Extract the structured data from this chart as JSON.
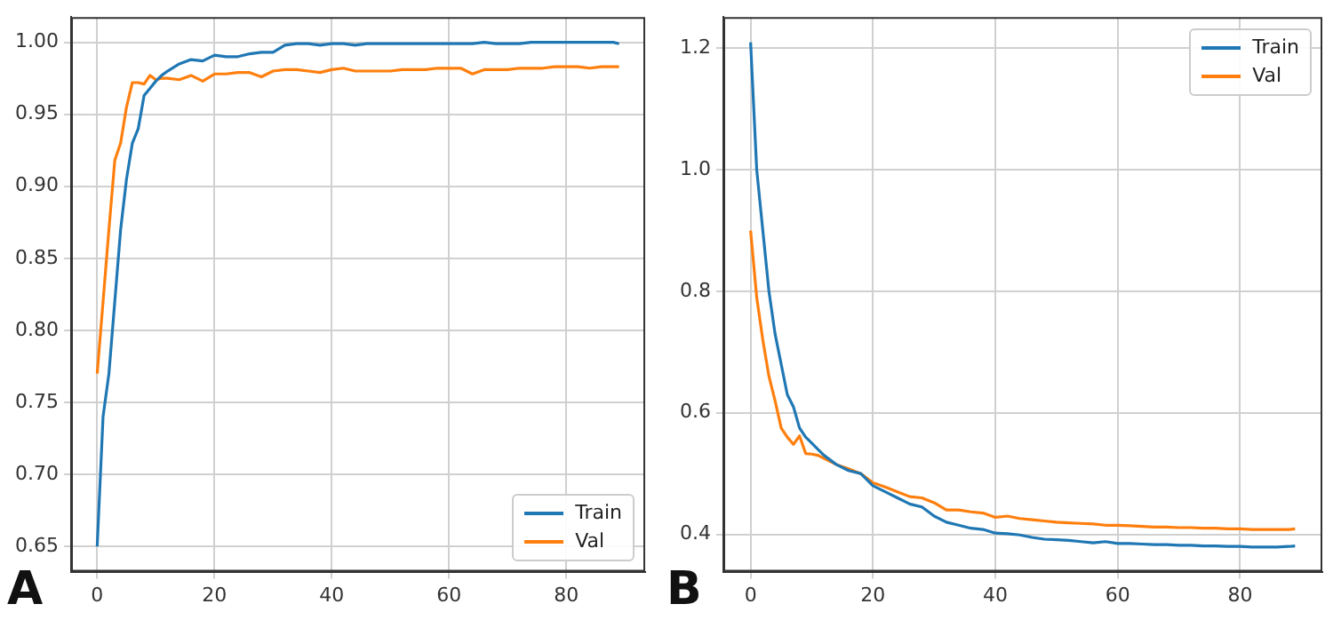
{
  "chart_data": [
    {
      "type": "line",
      "annotations": [
        "A"
      ],
      "legend": "bottom right",
      "grid": true,
      "x": [
        0,
        1,
        2,
        3,
        4,
        5,
        6,
        7,
        8,
        9,
        10,
        11,
        12,
        14,
        16,
        18,
        20,
        22,
        24,
        26,
        28,
        30,
        32,
        34,
        36,
        38,
        40,
        42,
        44,
        46,
        48,
        50,
        52,
        54,
        56,
        58,
        60,
        62,
        64,
        66,
        68,
        70,
        72,
        74,
        76,
        78,
        80,
        82,
        84,
        86,
        88,
        89
      ],
      "xlim": [
        -4.45,
        93.45
      ],
      "xticks": [
        0,
        20,
        40,
        60,
        80
      ],
      "ylim": [
        0.6325,
        1.0175
      ],
      "yticks": [
        0.65,
        {
          "value": 0.7,
          "label": "0.70"
        },
        0.75,
        {
          "value": 0.8,
          "label": "0.80"
        },
        0.85,
        {
          "value": 0.9,
          "label": "0.90"
        },
        0.95,
        {
          "value": 1,
          "label": "1.00"
        }
      ],
      "series": [
        {
          "name": "Train",
          "color": "#1f77b4",
          "values": [
            0.65,
            0.74,
            0.77,
            0.82,
            0.87,
            0.905,
            0.93,
            0.94,
            0.963,
            0.968,
            0.973,
            0.977,
            0.98,
            0.985,
            0.988,
            0.987,
            0.991,
            0.99,
            0.99,
            0.992,
            0.993,
            0.993,
            0.998,
            0.999,
            0.999,
            0.998,
            0.999,
            0.999,
            0.998,
            0.999,
            0.999,
            0.999,
            0.999,
            0.999,
            0.999,
            0.999,
            0.999,
            0.999,
            0.999,
            1.0,
            0.999,
            0.999,
            0.999,
            1.0,
            1.0,
            1.0,
            1.0,
            1.0,
            1.0,
            1.0,
            1.0,
            0.999
          ]
        },
        {
          "name": "Val",
          "color": "#ff7f0e",
          "values": [
            0.77,
            0.82,
            0.87,
            0.918,
            0.93,
            0.955,
            0.972,
            0.972,
            0.971,
            0.977,
            0.974,
            0.975,
            0.975,
            0.974,
            0.977,
            0.973,
            0.978,
            0.978,
            0.979,
            0.979,
            0.976,
            0.98,
            0.981,
            0.981,
            0.98,
            0.979,
            0.981,
            0.982,
            0.98,
            0.98,
            0.98,
            0.98,
            0.981,
            0.981,
            0.981,
            0.982,
            0.982,
            0.982,
            0.978,
            0.981,
            0.981,
            0.981,
            0.982,
            0.982,
            0.982,
            0.983,
            0.983,
            0.983,
            0.982,
            0.983,
            0.983,
            0.983
          ]
        }
      ]
    },
    {
      "type": "line",
      "annotations": [
        "B"
      ],
      "legend": "top right",
      "grid": true,
      "x": [
        0,
        1,
        2,
        3,
        4,
        5,
        6,
        7,
        8,
        9,
        10,
        11,
        12,
        14,
        16,
        18,
        20,
        22,
        24,
        26,
        28,
        30,
        32,
        34,
        36,
        38,
        40,
        42,
        44,
        46,
        48,
        50,
        52,
        54,
        56,
        58,
        60,
        62,
        64,
        66,
        68,
        70,
        72,
        74,
        76,
        78,
        80,
        82,
        84,
        86,
        88,
        89
      ],
      "xlim": [
        -4.45,
        93.45
      ],
      "xticks": [
        0,
        20,
        40,
        60,
        80
      ],
      "ylim": [
        0.3385,
        1.2515
      ],
      "yticks": [
        0.4,
        0.6,
        0.8,
        {
          "value": 1,
          "label": "1.0"
        },
        1.2
      ],
      "series": [
        {
          "name": "Train",
          "color": "#1f77b4",
          "values": [
            1.21,
            1.0,
            0.9,
            0.8,
            0.73,
            0.68,
            0.63,
            0.61,
            0.575,
            0.56,
            0.55,
            0.54,
            0.53,
            0.515,
            0.505,
            0.5,
            0.48,
            0.47,
            0.46,
            0.45,
            0.445,
            0.43,
            0.42,
            0.415,
            0.41,
            0.408,
            0.402,
            0.401,
            0.399,
            0.395,
            0.392,
            0.391,
            0.39,
            0.388,
            0.386,
            0.388,
            0.385,
            0.385,
            0.384,
            0.383,
            0.383,
            0.382,
            0.382,
            0.381,
            0.381,
            0.38,
            0.38,
            0.379,
            0.379,
            0.379,
            0.38,
            0.381
          ]
        },
        {
          "name": "Val",
          "color": "#ff7f0e",
          "values": [
            0.9,
            0.79,
            0.72,
            0.66,
            0.62,
            0.575,
            0.56,
            0.548,
            0.562,
            0.533,
            0.532,
            0.53,
            0.525,
            0.515,
            0.508,
            0.5,
            0.485,
            0.478,
            0.47,
            0.462,
            0.46,
            0.452,
            0.44,
            0.44,
            0.437,
            0.435,
            0.428,
            0.43,
            0.426,
            0.424,
            0.422,
            0.42,
            0.419,
            0.418,
            0.417,
            0.415,
            0.415,
            0.414,
            0.413,
            0.412,
            0.412,
            0.411,
            0.411,
            0.41,
            0.41,
            0.409,
            0.409,
            0.408,
            0.408,
            0.408,
            0.408,
            0.409
          ]
        }
      ]
    }
  ]
}
